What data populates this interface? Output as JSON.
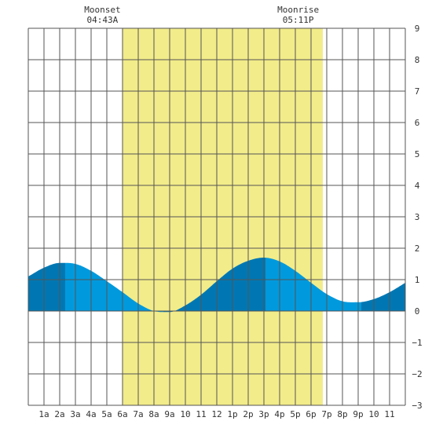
{
  "chart_data": {
    "type": "area",
    "title": "",
    "xlabel": "",
    "ylabel": "",
    "x_tick_labels": [
      "1a",
      "2a",
      "3a",
      "4a",
      "5a",
      "6a",
      "7a",
      "8a",
      "9a",
      "10",
      "11",
      "12",
      "1p",
      "2p",
      "3p",
      "4p",
      "5p",
      "6p",
      "7p",
      "8p",
      "9p",
      "10",
      "11"
    ],
    "y_ticks": [
      -3,
      -2,
      -1,
      0,
      1,
      2,
      3,
      4,
      5,
      6,
      7,
      8,
      9
    ],
    "xlim": [
      0,
      24
    ],
    "ylim": [
      -3,
      9
    ],
    "grid": true,
    "daylight_band": {
      "start_hour": 6.0,
      "end_hour": 18.75
    },
    "moon_events": [
      {
        "label": "Moonset",
        "time": "04:43A",
        "hour": 4.72
      },
      {
        "label": "Moonrise",
        "time": "05:11P",
        "hour": 17.18
      }
    ],
    "tide_extrema": [
      {
        "hour": 2.35,
        "height": 1.55
      },
      {
        "hour": 8.6,
        "height": -0.05
      },
      {
        "hour": 15.1,
        "height": 1.7
      },
      {
        "hour": 21.2,
        "height": 0.28
      }
    ],
    "tide_series": {
      "x": [
        0,
        1,
        2,
        3,
        4,
        5,
        6,
        7,
        8,
        9,
        10,
        11,
        12,
        13,
        14,
        15,
        16,
        17,
        18,
        19,
        20,
        21,
        22,
        23,
        24
      ],
      "y": [
        1.1,
        1.38,
        1.53,
        1.5,
        1.28,
        0.95,
        0.6,
        0.24,
        0.0,
        -0.03,
        0.18,
        0.52,
        0.95,
        1.35,
        1.6,
        1.7,
        1.58,
        1.28,
        0.9,
        0.54,
        0.31,
        0.28,
        0.38,
        0.6,
        0.9
      ]
    },
    "colors": {
      "daylight": "#f2ec8a",
      "tide_fill": "#0099dd",
      "tide_fill_dark": "#0077b3",
      "grid": "#555555",
      "background": "#ffffff"
    }
  }
}
